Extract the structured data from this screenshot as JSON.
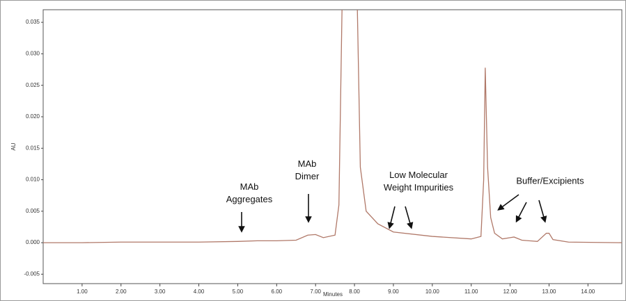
{
  "chart_data": {
    "type": "line",
    "xlabel": "Minutes",
    "ylabel": "AU",
    "annotations": [
      "MAb Aggregates",
      "MAb Dimer",
      "Low Molecular Weight Impurities",
      "Buffer/Excipients"
    ],
    "x": [
      0,
      1,
      2,
      4,
      5,
      5.5,
      6,
      6.5,
      6.8,
      7.0,
      7.2,
      7.5,
      7.6,
      7.7,
      8.05,
      8.15,
      8.3,
      8.6,
      9,
      10,
      11,
      11.25,
      11.32,
      11.36,
      11.42,
      11.5,
      11.6,
      11.8,
      12.0,
      12.1,
      12.3,
      12.7,
      12.93,
      13.0,
      13.1,
      13.5,
      14.87
    ],
    "series": [
      {
        "color": "#b07868",
        "values": [
          0,
          0,
          0.0001,
          0.0001,
          0.0002,
          0.0003,
          0.0003,
          0.0004,
          0.0012,
          0.0013,
          0.0008,
          0.0012,
          0.006,
          0.045,
          0.045,
          0.012,
          0.005,
          0.003,
          0.0017,
          0.001,
          0.0006,
          0.001,
          0.01,
          0.0278,
          0.012,
          0.004,
          0.0015,
          0.0006,
          0.0008,
          0.0009,
          0.0004,
          0.0002,
          0.0015,
          0.0015,
          0.0005,
          0.0001,
          0
        ]
      }
    ],
    "xlim": [
      0,
      14.87
    ],
    "ylim": [
      -0.0065,
      0.037
    ],
    "xticks": [
      {
        "value": 1,
        "label": "1.00"
      },
      {
        "value": 2,
        "label": "2.00"
      },
      {
        "value": 3,
        "label": "3.00"
      },
      {
        "value": 4,
        "label": "4.00"
      },
      {
        "value": 5,
        "label": "5.00"
      },
      {
        "value": 6,
        "label": "6.00"
      },
      {
        "value": 7,
        "label": "7.00"
      },
      {
        "value": 8,
        "label": "8.00"
      },
      {
        "value": 9,
        "label": "9.00"
      },
      {
        "value": 10,
        "label": "10.00"
      },
      {
        "value": 11,
        "label": "11.00"
      },
      {
        "value": 12,
        "label": "12.00"
      },
      {
        "value": 13,
        "label": "13.00"
      },
      {
        "value": 14,
        "label": "14.00"
      }
    ],
    "yticks": [
      {
        "value": -0.005,
        "label": "-0.005"
      },
      {
        "value": 0,
        "label": "0.000"
      },
      {
        "value": 0.005,
        "label": "0.005"
      },
      {
        "value": 0.01,
        "label": "0.010"
      },
      {
        "value": 0.015,
        "label": "0.015"
      },
      {
        "value": 0.02,
        "label": "0.020"
      },
      {
        "value": 0.025,
        "label": "0.025"
      },
      {
        "value": 0.03,
        "label": "0.030"
      },
      {
        "value": 0.035,
        "label": "0.035"
      }
    ],
    "grid": false
  }
}
